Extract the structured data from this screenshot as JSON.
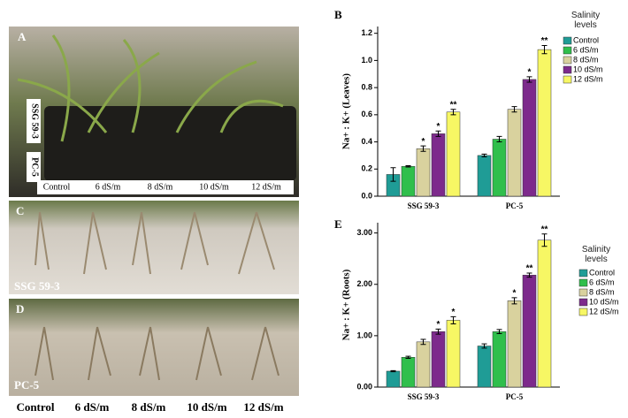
{
  "panels": [
    {
      "label": "A",
      "row_labels": [
        "SSG 59-3",
        "PC-5"
      ],
      "column_labels": [
        "Control",
        "6 dS/m",
        "8 dS/m",
        "10 dS/m",
        "12 dS/m"
      ]
    },
    {
      "label": "C",
      "caption": "SSG 59-3"
    },
    {
      "label": "D",
      "caption": "PC-5"
    }
  ],
  "column_labels": [
    "Control",
    "6 dS/m",
    "8 dS/m",
    "10 dS/m",
    "12 dS/m"
  ],
  "chart_data": [
    {
      "type": "bar",
      "panel_label": "B",
      "y_label": "Na+ : K+ (Leaves)",
      "legend_title": "Salinity levels",
      "categories": [
        "SSG 59-3",
        "PC-5"
      ],
      "ylim": [
        0,
        1.25
      ],
      "yticks": [
        {
          "value": 0,
          "label": "0.0"
        },
        0.2,
        0.4,
        0.6,
        0.8,
        {
          "value": 1,
          "label": "1.0"
        },
        1.2
      ],
      "series": [
        {
          "name": "Control",
          "color": "#1f9c96",
          "values": [
            0.16,
            0.3
          ],
          "errors": [
            0.05,
            0.01
          ],
          "annotations": [
            null,
            null
          ]
        },
        {
          "name": "6 dS/m",
          "color": "#30bf4c",
          "values": [
            0.22,
            0.42
          ],
          "errors": [
            0.005,
            0.02
          ],
          "annotations": [
            null,
            null
          ]
        },
        {
          "name": "8 dS/m",
          "color": "#d9d29e",
          "values": [
            0.35,
            0.64
          ],
          "errors": [
            0.02,
            0.02
          ],
          "annotations": [
            "*",
            null
          ]
        },
        {
          "name": "10 dS/m",
          "color": "#7d2a8c",
          "values": [
            0.46,
            0.86
          ],
          "errors": [
            0.02,
            0.02
          ],
          "annotations": [
            "*",
            "*"
          ]
        },
        {
          "name": "12 dS/m",
          "color": "#f7f764",
          "values": [
            0.62,
            1.08
          ],
          "errors": [
            0.02,
            0.03
          ],
          "annotations": [
            "**",
            "**"
          ]
        }
      ]
    },
    {
      "type": "bar",
      "panel_label": "E",
      "y_label": "Na+ : K+ (Roots)",
      "legend_title": "Salinity levels",
      "categories": [
        "SSG 59-3",
        "PC-5"
      ],
      "ylim": [
        0,
        3.2
      ],
      "yticks": [
        {
          "value": 0,
          "label": "0.00"
        },
        {
          "value": 1,
          "label": "1.00"
        },
        {
          "value": 2,
          "label": "2.00"
        },
        {
          "value": 3,
          "label": "3.00"
        }
      ],
      "series": [
        {
          "name": "Control",
          "color": "#1f9c96",
          "values": [
            0.31,
            0.8
          ],
          "errors": [
            0.01,
            0.04
          ],
          "annotations": [
            null,
            null
          ]
        },
        {
          "name": "6 dS/m",
          "color": "#30bf4c",
          "values": [
            0.58,
            1.08
          ],
          "errors": [
            0.02,
            0.04
          ],
          "annotations": [
            null,
            null
          ]
        },
        {
          "name": "8 dS/m",
          "color": "#d9d29e",
          "values": [
            0.88,
            1.68
          ],
          "errors": [
            0.05,
            0.06
          ],
          "annotations": [
            null,
            "*"
          ]
        },
        {
          "name": "10 dS/m",
          "color": "#7d2a8c",
          "values": [
            1.08,
            2.18
          ],
          "errors": [
            0.05,
            0.04
          ],
          "annotations": [
            "*",
            "**"
          ]
        },
        {
          "name": "12 dS/m",
          "color": "#f7f764",
          "values": [
            1.3,
            2.86
          ],
          "errors": [
            0.07,
            0.12
          ],
          "annotations": [
            "*",
            "**"
          ]
        }
      ]
    }
  ]
}
